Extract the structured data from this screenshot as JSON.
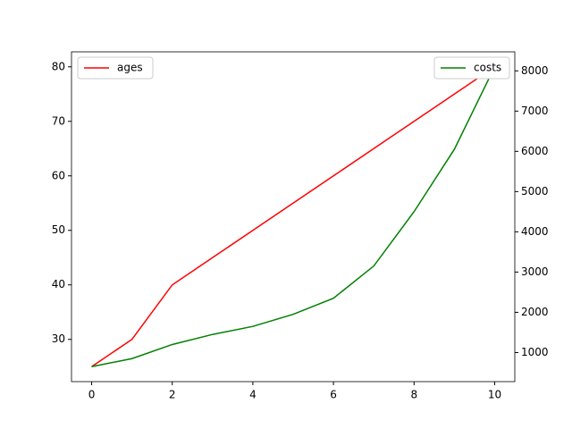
{
  "chart_data": {
    "type": "line",
    "x": [
      0,
      1,
      2,
      3,
      4,
      5,
      6,
      7,
      8,
      9,
      10
    ],
    "xlim": [
      -0.5,
      10.5
    ],
    "xticks": [
      0,
      2,
      4,
      6,
      8,
      10
    ],
    "ylim": [
      22.25,
      82.75
    ],
    "yticks": [
      30,
      40,
      50,
      60,
      70,
      80
    ],
    "y2lim": [
      277.5,
      8472.5
    ],
    "y2ticks": [
      1000,
      2000,
      3000,
      4000,
      5000,
      6000,
      7000,
      8000
    ],
    "legend": [
      "upper left",
      "upper right"
    ],
    "series": [
      {
        "name": "ages",
        "color": "#ff0000",
        "values": [
          25,
          30,
          40,
          45,
          50,
          55,
          60,
          65,
          70,
          75,
          80
        ]
      },
      {
        "name": "costs",
        "color": "#008000",
        "axis": "y2",
        "values": [
          650,
          850,
          1200,
          1450,
          1650,
          1950,
          2350,
          3150,
          4500,
          6050,
          8100
        ]
      }
    ]
  }
}
